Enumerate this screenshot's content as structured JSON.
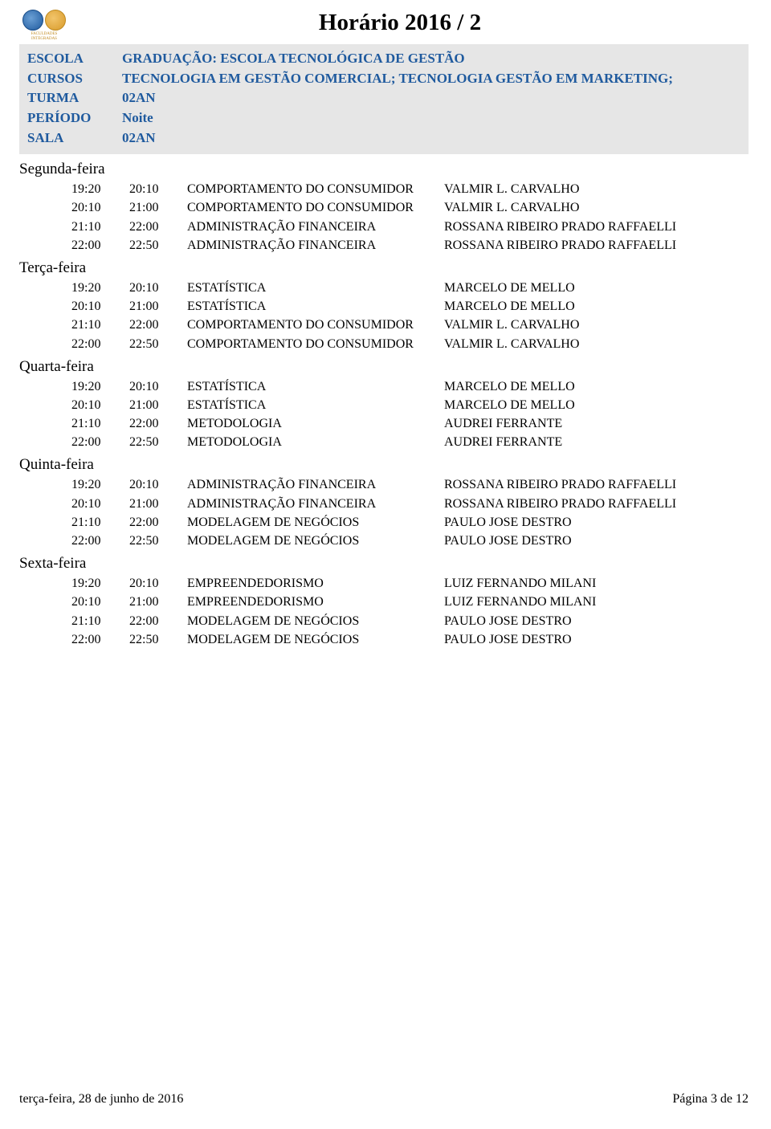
{
  "page_title": "Horário 2016 / 2",
  "colors": {
    "info_bg": "#e6e6e6",
    "info_text": "#1f5a9e",
    "body_text": "#000000",
    "logo_blue": "#1f5a9e",
    "logo_orange": "#d89a2a"
  },
  "info": {
    "escola": {
      "label": "ESCOLA",
      "value": "GRADUAÇÃO: ESCOLA TECNOLÓGICA DE GESTÃO"
    },
    "cursos": {
      "label": "CURSOS",
      "value": "TECNOLOGIA EM GESTÃO COMERCIAL; TECNOLOGIA GESTÃO EM MARKETING;"
    },
    "turma": {
      "label": "TURMA",
      "value": "02AN"
    },
    "periodo": {
      "label": "PERÍODO",
      "value": "Noite"
    },
    "sala": {
      "label": "SALA",
      "value": "02AN"
    }
  },
  "days": [
    {
      "name": "Segunda-feira",
      "rows": [
        {
          "start": "19:20",
          "end": "20:10",
          "course": "COMPORTAMENTO DO CONSUMIDOR",
          "instructor": "VALMIR L. CARVALHO"
        },
        {
          "start": "20:10",
          "end": "21:00",
          "course": "COMPORTAMENTO DO CONSUMIDOR",
          "instructor": "VALMIR L. CARVALHO"
        },
        {
          "start": "21:10",
          "end": "22:00",
          "course": "ADMINISTRAÇÃO FINANCEIRA",
          "instructor": "ROSSANA RIBEIRO PRADO RAFFAELLI"
        },
        {
          "start": "22:00",
          "end": "22:50",
          "course": "ADMINISTRAÇÃO FINANCEIRA",
          "instructor": "ROSSANA RIBEIRO PRADO RAFFAELLI"
        }
      ]
    },
    {
      "name": "Terça-feira",
      "rows": [
        {
          "start": "19:20",
          "end": "20:10",
          "course": "ESTATÍSTICA",
          "instructor": "MARCELO DE MELLO"
        },
        {
          "start": "20:10",
          "end": "21:00",
          "course": "ESTATÍSTICA",
          "instructor": "MARCELO DE MELLO"
        },
        {
          "start": "21:10",
          "end": "22:00",
          "course": "COMPORTAMENTO DO CONSUMIDOR",
          "instructor": "VALMIR L. CARVALHO"
        },
        {
          "start": "22:00",
          "end": "22:50",
          "course": "COMPORTAMENTO DO CONSUMIDOR",
          "instructor": "VALMIR L. CARVALHO"
        }
      ]
    },
    {
      "name": "Quarta-feira",
      "rows": [
        {
          "start": "19:20",
          "end": "20:10",
          "course": "ESTATÍSTICA",
          "instructor": "MARCELO DE MELLO"
        },
        {
          "start": "20:10",
          "end": "21:00",
          "course": "ESTATÍSTICA",
          "instructor": "MARCELO DE MELLO"
        },
        {
          "start": "21:10",
          "end": "22:00",
          "course": "METODOLOGIA",
          "instructor": "AUDREI  FERRANTE"
        },
        {
          "start": "22:00",
          "end": "22:50",
          "course": "METODOLOGIA",
          "instructor": "AUDREI  FERRANTE"
        }
      ]
    },
    {
      "name": "Quinta-feira",
      "rows": [
        {
          "start": "19:20",
          "end": "20:10",
          "course": "ADMINISTRAÇÃO FINANCEIRA",
          "instructor": "ROSSANA RIBEIRO PRADO RAFFAELLI"
        },
        {
          "start": "20:10",
          "end": "21:00",
          "course": "ADMINISTRAÇÃO FINANCEIRA",
          "instructor": "ROSSANA RIBEIRO PRADO RAFFAELLI"
        },
        {
          "start": "21:10",
          "end": "22:00",
          "course": "MODELAGEM DE NEGÓCIOS",
          "instructor": "PAULO JOSE DESTRO"
        },
        {
          "start": "22:00",
          "end": "22:50",
          "course": "MODELAGEM DE NEGÓCIOS",
          "instructor": "PAULO JOSE DESTRO"
        }
      ]
    },
    {
      "name": "Sexta-feira",
      "rows": [
        {
          "start": "19:20",
          "end": "20:10",
          "course": "EMPREENDEDORISMO",
          "instructor": "LUIZ FERNANDO MILANI"
        },
        {
          "start": "20:10",
          "end": "21:00",
          "course": "EMPREENDEDORISMO",
          "instructor": "LUIZ FERNANDO MILANI"
        },
        {
          "start": "21:10",
          "end": "22:00",
          "course": "MODELAGEM DE NEGÓCIOS",
          "instructor": "PAULO JOSE DESTRO"
        },
        {
          "start": "22:00",
          "end": "22:50",
          "course": "MODELAGEM DE NEGÓCIOS",
          "instructor": "PAULO JOSE DESTRO"
        }
      ]
    }
  ],
  "footer": {
    "date": "terça-feira, 28 de junho de 2016",
    "page": "Página 3 de 12"
  }
}
